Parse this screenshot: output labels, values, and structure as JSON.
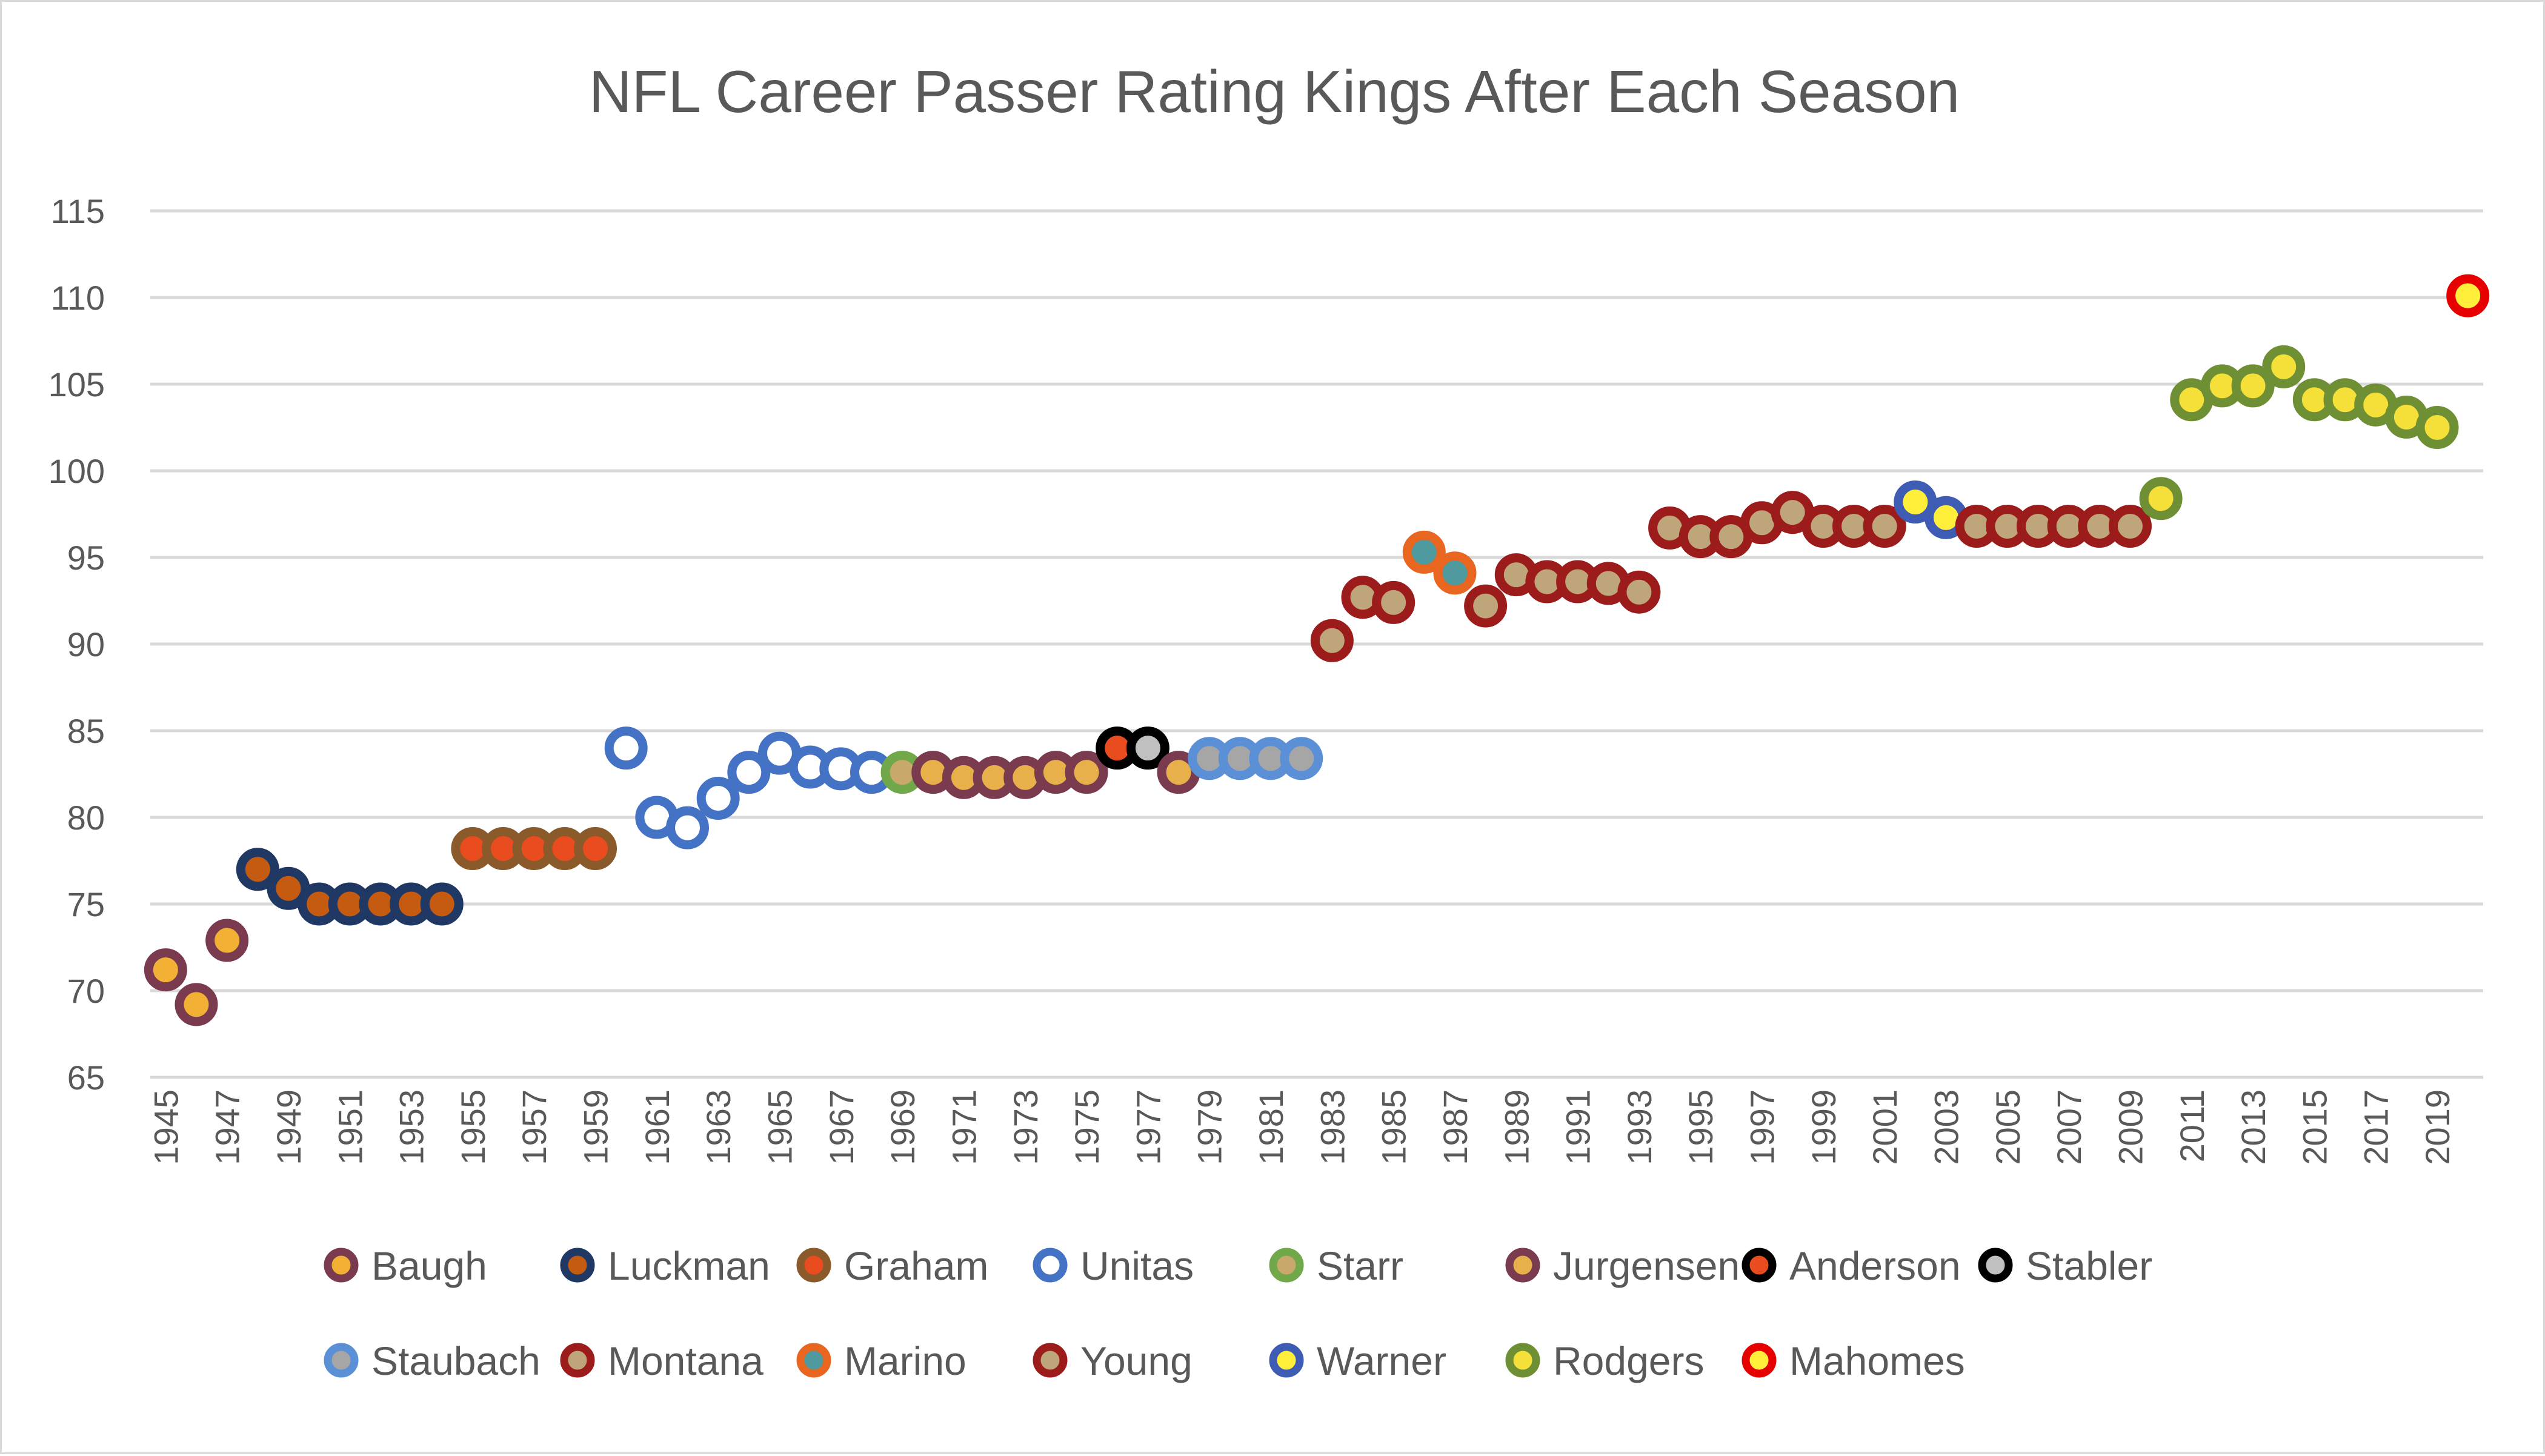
{
  "chart_data": {
    "type": "scatter",
    "title": "NFL Career Passer Rating Kings After Each Season",
    "xlabel": "",
    "ylabel": "",
    "xlim": [
      1945,
      2020
    ],
    "ylim": [
      65,
      115
    ],
    "yticks": [
      65,
      70,
      75,
      80,
      85,
      90,
      95,
      100,
      105,
      110,
      115
    ],
    "xtick_labels": [
      "1945",
      "1947",
      "1949",
      "1951",
      "1953",
      "1955",
      "1957",
      "1959",
      "1961",
      "1963",
      "1965",
      "1967",
      "1969",
      "1971",
      "1973",
      "1975",
      "1977",
      "1979",
      "1981",
      "1983",
      "1985",
      "1987",
      "1989",
      "1991",
      "1993",
      "1995",
      "1997",
      "1999",
      "2001",
      "2003",
      "2005",
      "2007",
      "2009",
      "2011",
      "2013",
      "2015",
      "2017",
      "2019"
    ],
    "grid": true,
    "legend_position": "bottom",
    "series": [
      {
        "name": "Baugh",
        "stroke": "#7b3b4e",
        "fill": "#f2b134",
        "hollow": false,
        "x": [
          1945,
          1946,
          1947
        ],
        "y": [
          71.2,
          69.2,
          72.9
        ]
      },
      {
        "name": "Luckman",
        "stroke": "#1f3864",
        "fill": "#c55a11",
        "hollow": false,
        "x": [
          1948,
          1949,
          1950,
          1951,
          1952,
          1953,
          1954
        ],
        "y": [
          77.0,
          75.9,
          75.0,
          75.0,
          75.0,
          75.0,
          75.0
        ]
      },
      {
        "name": "Graham",
        "stroke": "#8b5a2b",
        "fill": "#e84c1f",
        "hollow": false,
        "x": [
          1955,
          1956,
          1957,
          1958,
          1959
        ],
        "y": [
          78.2,
          78.2,
          78.2,
          78.2,
          78.2
        ]
      },
      {
        "name": "Unitas",
        "stroke": "#4472c4",
        "fill": "#ffffff",
        "hollow": true,
        "x": [
          1960,
          1961,
          1962,
          1963,
          1964,
          1965,
          1966,
          1967,
          1968
        ],
        "y": [
          84.0,
          80.0,
          79.4,
          81.1,
          82.6,
          83.7,
          82.9,
          82.8,
          82.6
        ]
      },
      {
        "name": "Starr",
        "stroke": "#70a84a",
        "fill": "#c8a86b",
        "hollow": false,
        "x": [
          1969
        ],
        "y": [
          82.6
        ]
      },
      {
        "name": "Jurgensen",
        "stroke": "#7b3b4e",
        "fill": "#e8b04a",
        "hollow": false,
        "x": [
          1970,
          1971,
          1972,
          1973,
          1974,
          1975
        ],
        "y": [
          82.6,
          82.3,
          82.3,
          82.3,
          82.6,
          82.6
        ]
      },
      {
        "name": "Anderson",
        "stroke": "#000000",
        "fill": "#e84c1f",
        "hollow": false,
        "x": [
          1976
        ],
        "y": [
          84.0
        ]
      },
      {
        "name": "Stabler",
        "stroke": "#000000",
        "fill": "#c0c0c0",
        "hollow": false,
        "x": [
          1977
        ],
        "y": [
          84.0
        ]
      },
      {
        "name": "Jurgensen",
        "stroke": "#7b3b4e",
        "fill": "#e8b04a",
        "hollow": false,
        "legend": false,
        "x": [
          1978
        ],
        "y": [
          82.6
        ]
      },
      {
        "name": "Staubach",
        "stroke": "#5b8fd6",
        "fill": "#a6a6a6",
        "hollow": false,
        "x": [
          1979,
          1980,
          1981,
          1982
        ],
        "y": [
          83.4,
          83.4,
          83.4,
          83.4
        ]
      },
      {
        "name": "Montana",
        "stroke": "#9c1b1b",
        "fill": "#bfa57a",
        "hollow": false,
        "x": [
          1983,
          1984,
          1985
        ],
        "y": [
          90.2,
          92.7,
          92.4
        ]
      },
      {
        "name": "Marino",
        "stroke": "#e8661f",
        "fill": "#4f9a9e",
        "hollow": false,
        "x": [
          1986,
          1987
        ],
        "y": [
          95.3,
          94.1
        ]
      },
      {
        "name": "Montana",
        "stroke": "#9c1b1b",
        "fill": "#bfa57a",
        "hollow": false,
        "legend": false,
        "x": [
          1988,
          1989,
          1990,
          1991,
          1992,
          1993
        ],
        "y": [
          92.2,
          94.0,
          93.6,
          93.6,
          93.5,
          93.0
        ]
      },
      {
        "name": "Young",
        "stroke": "#9c1b1b",
        "fill": "#bfa57a",
        "hollow": false,
        "x": [
          1994,
          1995,
          1996,
          1997,
          1998,
          1999,
          2000,
          2001
        ],
        "y": [
          96.7,
          96.2,
          96.2,
          97.0,
          97.6,
          96.8,
          96.8,
          96.8
        ]
      },
      {
        "name": "Warner",
        "stroke": "#3f5cb5",
        "fill": "#ffef3a",
        "hollow": false,
        "x": [
          2002,
          2003
        ],
        "y": [
          98.2,
          97.3
        ]
      },
      {
        "name": "Young",
        "stroke": "#9c1b1b",
        "fill": "#bfa57a",
        "hollow": false,
        "legend": false,
        "x": [
          2004,
          2005,
          2006,
          2007,
          2008,
          2009
        ],
        "y": [
          96.8,
          96.8,
          96.8,
          96.8,
          96.8,
          96.8
        ]
      },
      {
        "name": "Rodgers",
        "stroke": "#6f8f34",
        "fill": "#f5e03a",
        "hollow": false,
        "x": [
          2010,
          2011,
          2012,
          2013,
          2014,
          2015,
          2016,
          2017,
          2018,
          2019
        ],
        "y": [
          98.4,
          104.1,
          104.9,
          104.9,
          106.0,
          104.1,
          104.1,
          103.8,
          103.1,
          102.5
        ]
      },
      {
        "name": "Mahomes",
        "stroke": "#e60000",
        "fill": "#ffef3a",
        "hollow": false,
        "x": [
          2020
        ],
        "y": [
          110.1
        ]
      }
    ],
    "legend": [
      {
        "name": "Baugh",
        "stroke": "#7b3b4e",
        "fill": "#f2b134",
        "hollow": false
      },
      {
        "name": "Luckman",
        "stroke": "#1f3864",
        "fill": "#c55a11",
        "hollow": false
      },
      {
        "name": "Graham",
        "stroke": "#8b5a2b",
        "fill": "#e84c1f",
        "hollow": false
      },
      {
        "name": "Unitas",
        "stroke": "#4472c4",
        "fill": "#ffffff",
        "hollow": true
      },
      {
        "name": "Starr",
        "stroke": "#70a84a",
        "fill": "#c8a86b",
        "hollow": false
      },
      {
        "name": "Jurgensen",
        "stroke": "#7b3b4e",
        "fill": "#e8b04a",
        "hollow": false
      },
      {
        "name": "Anderson",
        "stroke": "#000000",
        "fill": "#e84c1f",
        "hollow": false
      },
      {
        "name": "Stabler",
        "stroke": "#000000",
        "fill": "#c0c0c0",
        "hollow": false
      },
      {
        "name": "Staubach",
        "stroke": "#5b8fd6",
        "fill": "#a6a6a6",
        "hollow": false
      },
      {
        "name": "Montana",
        "stroke": "#9c1b1b",
        "fill": "#bfa57a",
        "hollow": false
      },
      {
        "name": "Marino",
        "stroke": "#e8661f",
        "fill": "#4f9a9e",
        "hollow": false
      },
      {
        "name": "Young",
        "stroke": "#9c1b1b",
        "fill": "#bfa57a",
        "hollow": false
      },
      {
        "name": "Warner",
        "stroke": "#3f5cb5",
        "fill": "#ffef3a",
        "hollow": false
      },
      {
        "name": "Rodgers",
        "stroke": "#6f8f34",
        "fill": "#f5e03a",
        "hollow": false
      },
      {
        "name": "Mahomes",
        "stroke": "#e60000",
        "fill": "#ffef3a",
        "hollow": false
      }
    ],
    "gridline_color": "#d9d9d9",
    "text_color": "#595959"
  }
}
